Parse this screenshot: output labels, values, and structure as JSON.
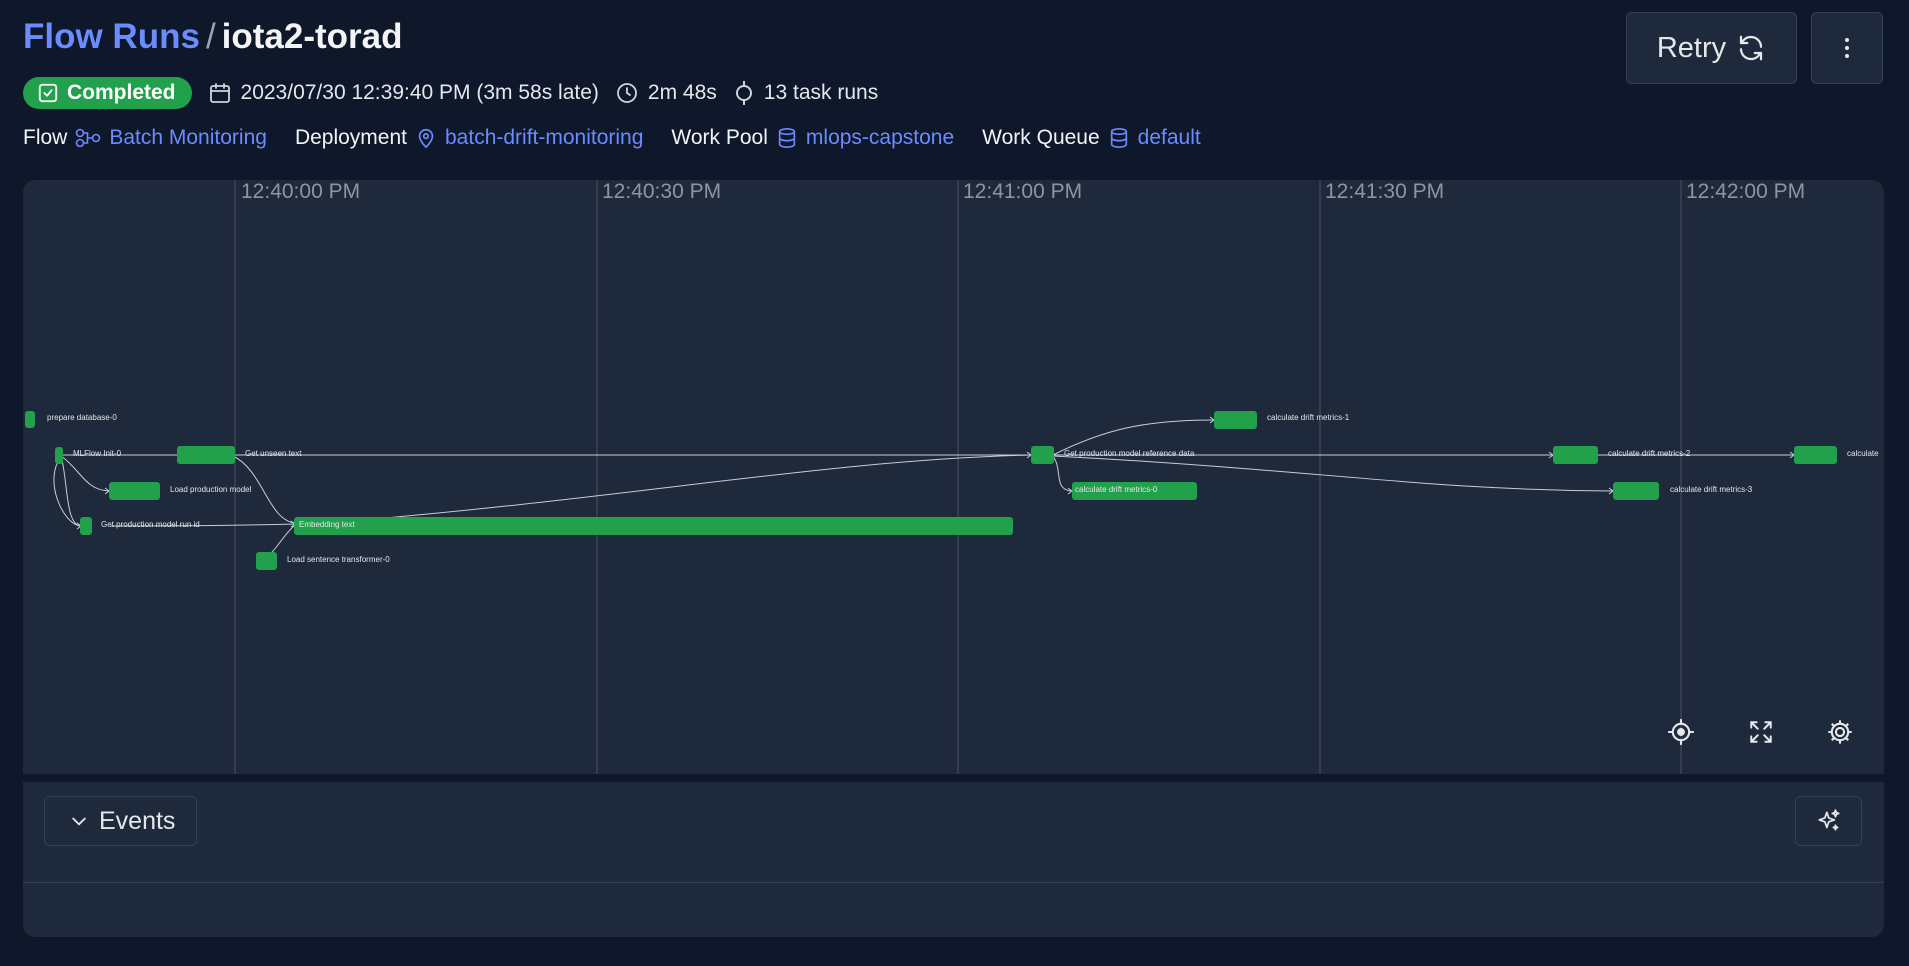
{
  "header": {
    "breadcrumb_root": "Flow Runs",
    "separator": "/",
    "run_name": "iota2-torad"
  },
  "status": {
    "label": "Completed",
    "color": "#22a04b"
  },
  "meta": {
    "start_time": "2023/07/30 12:39:40 PM (3m 58s late)",
    "duration": "2m 48s",
    "task_runs": "13 task runs"
  },
  "info": {
    "flow_label": "Flow",
    "flow_value": "Batch Monitoring",
    "deployment_label": "Deployment",
    "deployment_value": "batch-drift-monitoring",
    "work_pool_label": "Work Pool",
    "work_pool_value": "mlops-capstone",
    "work_queue_label": "Work Queue",
    "work_queue_value": "default"
  },
  "actions": {
    "retry_label": "Retry",
    "more_icon": "more-vertical-icon"
  },
  "timeline": {
    "ticks": [
      "12:40:00 PM",
      "12:40:30 PM",
      "12:41:00 PM",
      "12:41:30 PM",
      "12:42:00 PM"
    ],
    "bar_color": "#22a04b",
    "tasks": [
      {
        "label": "prepare database-0"
      },
      {
        "label": "MLFlow Init-0"
      },
      {
        "label": "Get unseen text"
      },
      {
        "label": "Load production model"
      },
      {
        "label": "Get production model run id"
      },
      {
        "label": "Embedding text"
      },
      {
        "label": "Load sentence transformer-0"
      },
      {
        "label": "Get production model reference data"
      },
      {
        "label": "calculate drift metrics-1"
      },
      {
        "label": "calculate drift metrics-0"
      },
      {
        "label": "calculate drift metrics-2"
      },
      {
        "label": "calculate drift metrics-3"
      },
      {
        "label": "calculate"
      }
    ],
    "controls": [
      "recenter-icon",
      "fullscreen-icon",
      "settings-icon"
    ]
  },
  "events": {
    "label": "Events",
    "ai_icon": "sparkles-icon"
  }
}
